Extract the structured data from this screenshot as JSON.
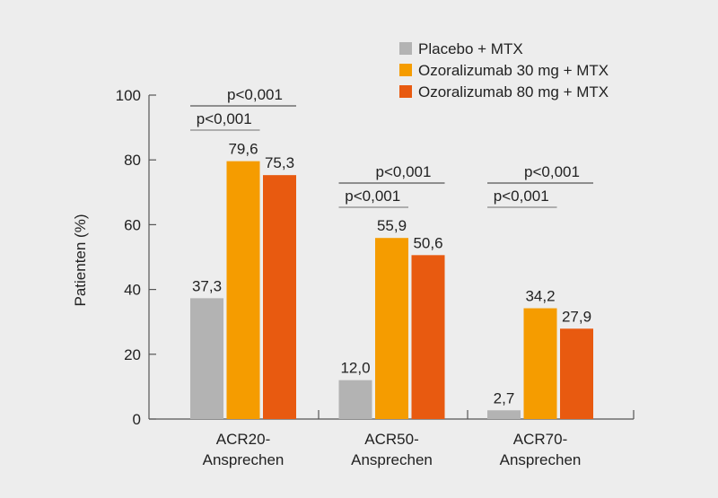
{
  "chart_data": {
    "type": "bar",
    "ylabel": "Patienten (%)",
    "ylim": [
      0,
      100
    ],
    "yticks": [
      0,
      20,
      40,
      60,
      80,
      100
    ],
    "categories": [
      [
        "ACR20-",
        "Ansprechen"
      ],
      [
        "ACR50-",
        "Ansprechen"
      ],
      [
        "ACR70-",
        "Ansprechen"
      ]
    ],
    "series": [
      {
        "name": "Placebo + MTX",
        "color": "#b3b3b3",
        "values": [
          37.3,
          12.0,
          2.7
        ],
        "labels": [
          "37,3",
          "12,0",
          "2,7"
        ]
      },
      {
        "name": "Ozoralizumab 30 mg + MTX",
        "color": "#f59c00",
        "values": [
          79.6,
          55.9,
          34.2
        ],
        "labels": [
          "79,6",
          "55,9",
          "34,2"
        ]
      },
      {
        "name": "Ozoralizumab 80 mg + MTX",
        "color": "#e85a10",
        "values": [
          75.3,
          50.6,
          27.9
        ],
        "labels": [
          "75,3",
          "50,6",
          "27,9"
        ]
      }
    ],
    "significance": [
      {
        "group": 0,
        "compare": "Placebo vs 30 mg",
        "label": "p<0,001"
      },
      {
        "group": 0,
        "compare": "Placebo vs 80 mg",
        "label": "p<0,001"
      },
      {
        "group": 1,
        "compare": "Placebo vs 30 mg",
        "label": "p<0,001"
      },
      {
        "group": 1,
        "compare": "Placebo vs 80 mg",
        "label": "p<0,001"
      },
      {
        "group": 2,
        "compare": "Placebo vs 30 mg",
        "label": "p<0,001"
      },
      {
        "group": 2,
        "compare": "Placebo vs 80 mg",
        "label": "p<0,001"
      }
    ],
    "legend_position": "top-right",
    "grid": false
  }
}
